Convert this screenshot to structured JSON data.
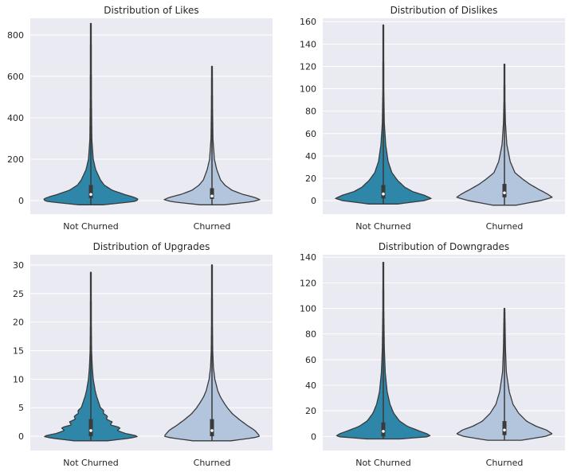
{
  "figure": {
    "colors": {
      "panel_bg": "#EAEAF2",
      "grid": "#FFFFFF",
      "not_churned": "#2E86A8",
      "churned": "#B3C5DC",
      "outline": "#3A3A3A",
      "box": "#3A3A3A",
      "median": "#FFFFFF"
    }
  },
  "chart_data": [
    {
      "type": "violin",
      "title": "Distribution of Likes",
      "categories": [
        "Not Churned",
        "Churned"
      ],
      "ylim": [
        -65,
        880
      ],
      "yticks": [
        0,
        200,
        400,
        600,
        800
      ],
      "series": [
        {
          "name": "Not Churned",
          "min": -20,
          "q1": 12,
          "median": 30,
          "q3": 75,
          "max": 855,
          "profile": [
            [
              -20,
              0.25
            ],
            [
              -5,
              0.9
            ],
            [
              5,
              1.0
            ],
            [
              15,
              0.92
            ],
            [
              30,
              0.7
            ],
            [
              50,
              0.45
            ],
            [
              75,
              0.28
            ],
            [
              100,
              0.2
            ],
            [
              150,
              0.1
            ],
            [
              200,
              0.05
            ],
            [
              300,
              0.02
            ],
            [
              500,
              0.012
            ],
            [
              855,
              0.008
            ]
          ]
        },
        {
          "name": "Churned",
          "min": -20,
          "q1": 8,
          "median": 22,
          "q3": 60,
          "max": 648,
          "profile": [
            [
              -20,
              0.25
            ],
            [
              -5,
              0.85
            ],
            [
              5,
              1.0
            ],
            [
              15,
              0.9
            ],
            [
              30,
              0.65
            ],
            [
              50,
              0.42
            ],
            [
              75,
              0.27
            ],
            [
              100,
              0.18
            ],
            [
              150,
              0.1
            ],
            [
              200,
              0.05
            ],
            [
              300,
              0.02
            ],
            [
              450,
              0.012
            ],
            [
              648,
              0.008
            ]
          ]
        }
      ]
    },
    {
      "type": "violin",
      "title": "Distribution of Dislikes",
      "categories": [
        "Not Churned",
        "Churned"
      ],
      "ylim": [
        -12,
        163
      ],
      "yticks": [
        0,
        20,
        40,
        60,
        80,
        100,
        120,
        140,
        160
      ],
      "series": [
        {
          "name": "Not Churned",
          "min": -3,
          "q1": 2,
          "median": 6,
          "q3": 14,
          "max": 157,
          "profile": [
            [
              -3,
              0.3
            ],
            [
              0,
              0.85
            ],
            [
              2,
              1.0
            ],
            [
              5,
              0.85
            ],
            [
              8,
              0.62
            ],
            [
              12,
              0.45
            ],
            [
              18,
              0.3
            ],
            [
              25,
              0.18
            ],
            [
              35,
              0.1
            ],
            [
              50,
              0.05
            ],
            [
              70,
              0.02
            ],
            [
              100,
              0.01
            ],
            [
              157,
              0.008
            ]
          ]
        },
        {
          "name": "Churned",
          "min": -4,
          "q1": 3,
          "median": 7,
          "q3": 15,
          "max": 122,
          "profile": [
            [
              -4,
              0.25
            ],
            [
              0,
              0.75
            ],
            [
              3,
              1.0
            ],
            [
              6,
              0.9
            ],
            [
              10,
              0.72
            ],
            [
              15,
              0.52
            ],
            [
              20,
              0.36
            ],
            [
              25,
              0.22
            ],
            [
              35,
              0.12
            ],
            [
              50,
              0.05
            ],
            [
              70,
              0.02
            ],
            [
              90,
              0.01
            ],
            [
              122,
              0.008
            ]
          ]
        }
      ]
    },
    {
      "type": "violin",
      "title": "Distribution of Upgrades",
      "categories": [
        "Not Churned",
        "Churned"
      ],
      "ylim": [
        -2.5,
        31.8
      ],
      "yticks": [
        0,
        5,
        10,
        15,
        20,
        25,
        30
      ],
      "series": [
        {
          "name": "Not Churned",
          "min": -0.8,
          "q1": 0,
          "median": 1,
          "q3": 3,
          "max": 28.7,
          "profile": [
            [
              -0.8,
              0.35
            ],
            [
              -0.3,
              0.85
            ],
            [
              0,
              1.0
            ],
            [
              0.5,
              0.72
            ],
            [
              1,
              0.55
            ],
            [
              1.5,
              0.62
            ],
            [
              2,
              0.4
            ],
            [
              2.5,
              0.45
            ],
            [
              3,
              0.32
            ],
            [
              3.5,
              0.35
            ],
            [
              4,
              0.26
            ],
            [
              4.5,
              0.27
            ],
            [
              5,
              0.2
            ],
            [
              6,
              0.16
            ],
            [
              7,
              0.12
            ],
            [
              8,
              0.09
            ],
            [
              9,
              0.07
            ],
            [
              10,
              0.05
            ],
            [
              12,
              0.03
            ],
            [
              15,
              0.015
            ],
            [
              20,
              0.01
            ],
            [
              28.7,
              0.008
            ]
          ]
        },
        {
          "name": "Churned",
          "min": -0.8,
          "q1": 0,
          "median": 1,
          "q3": 3,
          "max": 30,
          "profile": [
            [
              -0.8,
              0.4
            ],
            [
              -0.3,
              0.85
            ],
            [
              0,
              1.0
            ],
            [
              0.5,
              0.95
            ],
            [
              1,
              0.9
            ],
            [
              2,
              0.72
            ],
            [
              3,
              0.56
            ],
            [
              4,
              0.42
            ],
            [
              5,
              0.32
            ],
            [
              6,
              0.24
            ],
            [
              7,
              0.17
            ],
            [
              8,
              0.12
            ],
            [
              10,
              0.06
            ],
            [
              12,
              0.03
            ],
            [
              15,
              0.015
            ],
            [
              20,
              0.01
            ],
            [
              30,
              0.008
            ]
          ]
        }
      ]
    },
    {
      "type": "violin",
      "title": "Distribution of Downgrades",
      "categories": [
        "Not Churned",
        "Churned"
      ],
      "ylim": [
        -11,
        142
      ],
      "yticks": [
        0,
        20,
        40,
        60,
        80,
        100,
        120,
        140
      ],
      "series": [
        {
          "name": "Not Churned",
          "min": -2,
          "q1": 0,
          "median": 4,
          "q3": 11,
          "max": 136,
          "profile": [
            [
              -2,
              0.35
            ],
            [
              0,
              1.0
            ],
            [
              2,
              0.92
            ],
            [
              5,
              0.7
            ],
            [
              8,
              0.5
            ],
            [
              12,
              0.34
            ],
            [
              18,
              0.22
            ],
            [
              25,
              0.14
            ],
            [
              35,
              0.08
            ],
            [
              50,
              0.04
            ],
            [
              70,
              0.02
            ],
            [
              100,
              0.01
            ],
            [
              136,
              0.008
            ]
          ]
        },
        {
          "name": "Churned",
          "min": -3,
          "q1": 1,
          "median": 5,
          "q3": 12,
          "max": 100,
          "profile": [
            [
              -3,
              0.35
            ],
            [
              0,
              0.85
            ],
            [
              2,
              1.0
            ],
            [
              5,
              0.88
            ],
            [
              8,
              0.66
            ],
            [
              12,
              0.46
            ],
            [
              18,
              0.3
            ],
            [
              25,
              0.18
            ],
            [
              35,
              0.1
            ],
            [
              50,
              0.04
            ],
            [
              70,
              0.02
            ],
            [
              100,
              0.008
            ]
          ]
        }
      ]
    }
  ]
}
